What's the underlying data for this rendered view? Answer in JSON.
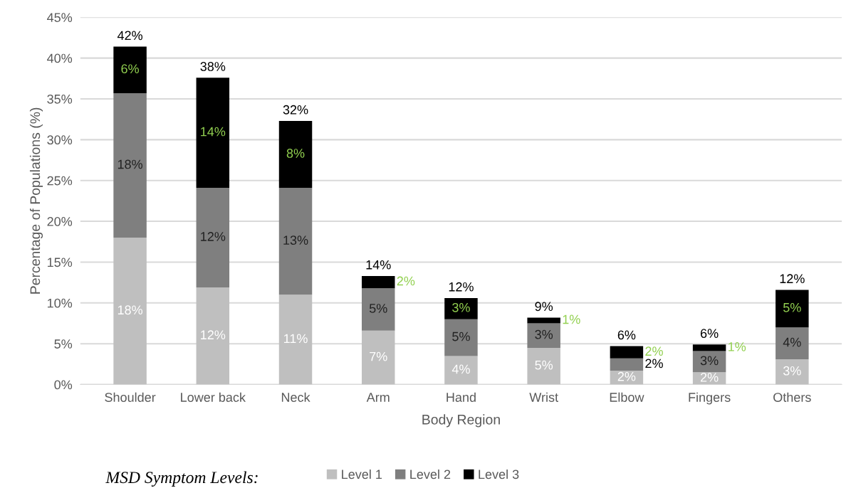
{
  "chart_data": {
    "type": "bar",
    "stacked": true,
    "xlabel": "Body Region",
    "ylabel": "Percentage of Populations (%)",
    "legend_title": "MSD Symptom Levels:",
    "legend": "bottom",
    "grid": "y",
    "categories": [
      "Shoulder",
      "Lower back",
      "Neck",
      "Arm",
      "Hand",
      "Wrist",
      "Elbow",
      "Fingers",
      "Others"
    ],
    "ylim": [
      0,
      45
    ],
    "yticks": [
      {
        "value": 0,
        "label": "0%"
      },
      {
        "value": 5,
        "label": "5%"
      },
      {
        "value": 10,
        "label": "10%"
      },
      {
        "value": 15,
        "label": "15%"
      },
      {
        "value": 20,
        "label": "20%"
      },
      {
        "value": 25,
        "label": "25%"
      },
      {
        "value": 30,
        "label": "30%"
      },
      {
        "value": 35,
        "label": "35%"
      },
      {
        "value": 40,
        "label": "40%"
      },
      {
        "value": 45,
        "label": "45%"
      }
    ],
    "series": [
      {
        "name": "Level 1",
        "color": "#bfbfbf",
        "values": [
          18.0,
          11.9,
          11.0,
          6.6,
          3.5,
          4.5,
          1.7,
          1.5,
          3.1
        ],
        "value_labels": [
          "18%",
          "12%",
          "11%",
          "7%",
          "4%",
          "5%",
          "2%",
          "2%",
          "3%"
        ]
      },
      {
        "name": "Level 2",
        "color": "#7f7f7f",
        "values": [
          17.7,
          12.2,
          13.1,
          5.2,
          4.5,
          3.0,
          1.5,
          2.6,
          3.9
        ],
        "value_labels": [
          "18%",
          "12%",
          "13%",
          "5%",
          "5%",
          "3%",
          "2%",
          "3%",
          "4%"
        ]
      },
      {
        "name": "Level 3",
        "color": "#000000",
        "values": [
          5.7,
          13.5,
          8.2,
          1.5,
          2.6,
          0.7,
          1.5,
          0.8,
          4.6
        ],
        "value_labels": [
          "6%",
          "14%",
          "8%",
          "2%",
          "3%",
          "1%",
          "2%",
          "1%",
          "5%"
        ]
      }
    ],
    "totals": [
      "42%",
      "38%",
      "32%",
      "14%",
      "12%",
      "9%",
      "6%",
      "6%",
      "12%"
    ]
  }
}
